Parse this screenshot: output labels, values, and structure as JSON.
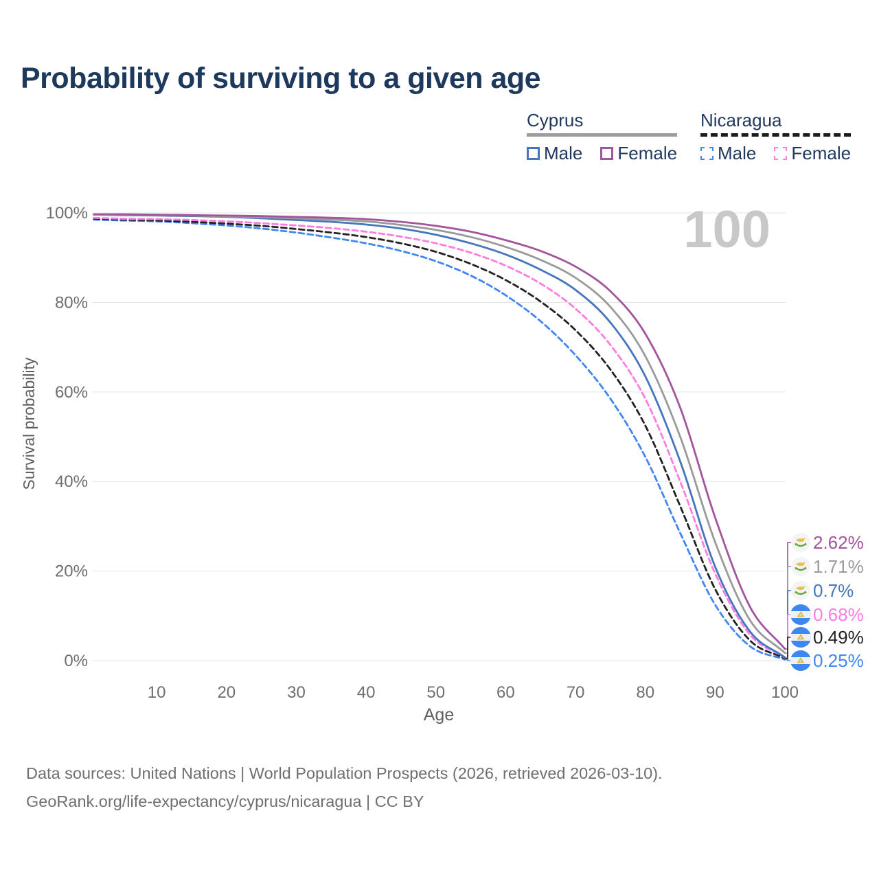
{
  "header": {
    "title": "Probability of surviving to a given age"
  },
  "legend": {
    "groups": [
      {
        "country": "Cyprus",
        "line_style": "solid",
        "underline_color": "#9e9e9e",
        "items": [
          {
            "label": "Male",
            "color": "#4575bc"
          },
          {
            "label": "Female",
            "color": "#a2559c"
          }
        ]
      },
      {
        "country": "Nicaragua",
        "line_style": "dashed",
        "underline_color": "#1c1c1c",
        "items": [
          {
            "label": "Male",
            "color": "#4285f4"
          },
          {
            "label": "Female",
            "color": "#ff7ce0"
          }
        ]
      }
    ]
  },
  "chart_data": {
    "type": "line",
    "title": "Probability of surviving to a given age",
    "xlabel": "Age",
    "ylabel": "Survival probability",
    "xlim": [
      1,
      100
    ],
    "ylim": [
      0,
      100
    ],
    "grid": "horizontal",
    "legend_position": "top-right",
    "age_counter_watermark": "100",
    "x_ticks": [
      10,
      20,
      30,
      40,
      50,
      60,
      70,
      80,
      90,
      100
    ],
    "y_ticks": [
      {
        "value": 0,
        "label": "0%"
      },
      {
        "value": 20,
        "label": "20%"
      },
      {
        "value": 40,
        "label": "40%"
      },
      {
        "value": 60,
        "label": "60%"
      },
      {
        "value": 80,
        "label": "80%"
      },
      {
        "value": 100,
        "label": "100%"
      }
    ],
    "x": [
      1,
      5,
      10,
      15,
      20,
      25,
      30,
      35,
      40,
      45,
      50,
      55,
      60,
      65,
      70,
      75,
      80,
      85,
      90,
      95,
      100
    ],
    "series": [
      {
        "name": "Cyprus Female",
        "country": "Cyprus",
        "sex": "Female",
        "color": "#a2559c",
        "line_style": "solid",
        "flag": "cyprus",
        "end_label": "2.62%",
        "values": [
          99.7,
          99.7,
          99.6,
          99.5,
          99.4,
          99.3,
          99.1,
          98.9,
          98.6,
          98.0,
          97.1,
          95.8,
          93.9,
          91.5,
          88.0,
          82.5,
          73.0,
          56.5,
          32.0,
          12.0,
          2.62
        ]
      },
      {
        "name": "Cyprus",
        "country": "Cyprus",
        "sex": "Both",
        "color": "#9a9a9a",
        "line_style": "solid",
        "flag": "cyprus",
        "end_label": "1.71%",
        "values": [
          99.6,
          99.6,
          99.5,
          99.4,
          99.2,
          99.0,
          98.8,
          98.5,
          98.1,
          97.3,
          96.2,
          94.6,
          92.4,
          89.5,
          85.5,
          79.0,
          68.0,
          50.0,
          26.5,
          9.0,
          1.71
        ]
      },
      {
        "name": "Cyprus Male",
        "country": "Cyprus",
        "sex": "Male",
        "color": "#4575bc",
        "line_style": "solid",
        "flag": "cyprus",
        "end_label": "0.7%",
        "values": [
          99.6,
          99.5,
          99.4,
          99.3,
          99.1,
          98.8,
          98.4,
          98.0,
          97.4,
          96.5,
          95.1,
          93.2,
          90.7,
          87.3,
          82.8,
          75.5,
          63.5,
          44.5,
          21.0,
          6.5,
          0.7
        ]
      },
      {
        "name": "Nicaragua Female",
        "country": "Nicaragua",
        "sex": "Female",
        "color": "#ff7ce0",
        "line_style": "dashed",
        "flag": "nicaragua",
        "end_label": "0.68%",
        "values": [
          98.9,
          98.7,
          98.6,
          98.4,
          98.1,
          97.7,
          97.2,
          96.6,
          95.8,
          94.7,
          93.2,
          91.1,
          88.2,
          84.2,
          78.6,
          70.5,
          58.5,
          40.0,
          19.5,
          5.8,
          0.68
        ]
      },
      {
        "name": "Nicaragua",
        "country": "Nicaragua",
        "sex": "Both",
        "color": "#222222",
        "line_style": "dashed",
        "flag": "nicaragua",
        "end_label": "0.49%",
        "values": [
          98.7,
          98.5,
          98.3,
          98.0,
          97.6,
          97.1,
          96.4,
          95.6,
          94.6,
          93.2,
          91.3,
          88.6,
          85.0,
          80.2,
          73.8,
          65.0,
          52.5,
          34.5,
          16.0,
          4.5,
          0.49
        ]
      },
      {
        "name": "Nicaragua Male",
        "country": "Nicaragua",
        "sex": "Male",
        "color": "#4285f4",
        "line_style": "dashed",
        "flag": "nicaragua",
        "end_label": "0.25%",
        "values": [
          98.5,
          98.3,
          98.1,
          97.7,
          97.2,
          96.5,
          95.6,
          94.5,
          93.2,
          91.5,
          89.2,
          86.0,
          81.6,
          75.8,
          68.2,
          58.5,
          45.5,
          28.5,
          12.5,
          3.2,
          0.25
        ]
      }
    ]
  },
  "footer": {
    "line1": "Data sources: United Nations | World Population Prospects (2026, retrieved 2026-03-10).",
    "line2": "GeoRank.org/life-expectancy/cyprus/nicaragua | CC BY"
  }
}
